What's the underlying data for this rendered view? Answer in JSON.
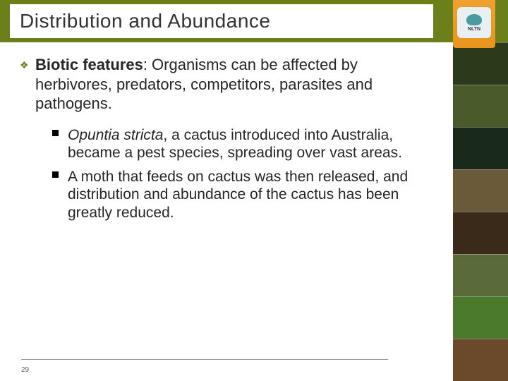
{
  "header": {
    "title": "Distribution and Abundance",
    "bar_color": "#6b7f1a",
    "logo_label": "NLTN"
  },
  "content": {
    "main_bullet_led": "Biotic features",
    "main_bullet_tail": ": Organisms can be affected by herbivores, predators, competitors, parasites and pathogens.",
    "sub_bullets": [
      {
        "em": "Opuntia stricta",
        "rest": ", a cactus introduced into Australia, became a pest species, spreading over vast areas."
      },
      {
        "em": "",
        "rest": "A moth that feeds on cactus was then released, and distribution and abundance of the cactus has been greatly reduced."
      }
    ]
  },
  "sidebar": {
    "tiles": [
      "#2a3a1a",
      "#4a5a2a",
      "#1a2a1a",
      "#6a5a3a",
      "#3a2a1a",
      "#5a6a3a",
      "#4a7a2a",
      "#6a4a2a"
    ]
  },
  "footer": {
    "page_number": "29"
  }
}
